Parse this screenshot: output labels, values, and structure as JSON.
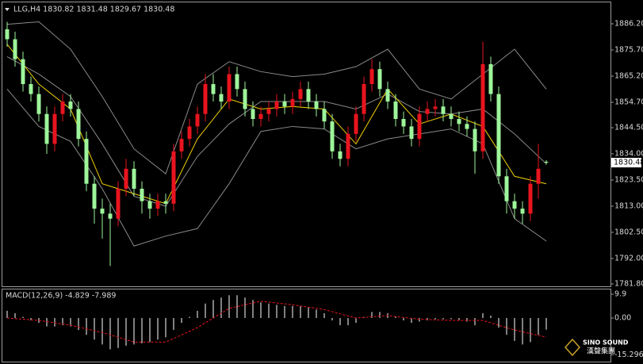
{
  "chart_data": [
    {
      "type": "candlestick",
      "title": "LLG,H4 1830.82 1831.48 1829.67 1830.48",
      "open": [
        1884,
        1880,
        1872,
        1862,
        1858,
        1850,
        1838,
        1850,
        1855,
        1852,
        1840,
        1822,
        1812,
        1810,
        1808,
        1820,
        1828,
        1820,
        1815,
        1812,
        1815,
        1814,
        1835,
        1840,
        1845,
        1850,
        1862,
        1858,
        1855,
        1866,
        1860,
        1852,
        1848,
        1850,
        1852,
        1855,
        1853,
        1856,
        1860,
        1855,
        1852,
        1847,
        1835,
        1832,
        1842,
        1850,
        1862,
        1868,
        1860,
        1855,
        1848,
        1845,
        1840,
        1850,
        1852,
        1853,
        1850,
        1848,
        1846,
        1844,
        1835,
        1870,
        1858,
        1825,
        1815,
        1812,
        1810,
        1822,
        1830.82
      ],
      "high": [
        1887,
        1883,
        1875,
        1865,
        1861,
        1853,
        1853,
        1858,
        1858,
        1855,
        1843,
        1825,
        1816,
        1814,
        1823,
        1832,
        1831,
        1823,
        1818,
        1818,
        1818,
        1838,
        1843,
        1848,
        1853,
        1866,
        1866,
        1861,
        1869,
        1869,
        1863,
        1855,
        1853,
        1855,
        1858,
        1858,
        1859,
        1863,
        1863,
        1858,
        1855,
        1850,
        1838,
        1845,
        1853,
        1865,
        1872,
        1871,
        1863,
        1858,
        1851,
        1848,
        1853,
        1855,
        1856,
        1856,
        1853,
        1851,
        1849,
        1847,
        1879,
        1873,
        1861,
        1828,
        1818,
        1815,
        1825,
        1838,
        1831.48
      ],
      "low": [
        1877,
        1869,
        1859,
        1855,
        1847,
        1834,
        1835,
        1847,
        1849,
        1837,
        1819,
        1806,
        1800,
        1789,
        1805,
        1817,
        1817,
        1810,
        1808,
        1809,
        1810,
        1811,
        1832,
        1837,
        1842,
        1847,
        1855,
        1852,
        1852,
        1857,
        1849,
        1845,
        1845,
        1847,
        1849,
        1850,
        1850,
        1853,
        1852,
        1849,
        1844,
        1832,
        1829,
        1829,
        1839,
        1847,
        1859,
        1857,
        1852,
        1845,
        1842,
        1837,
        1837,
        1847,
        1849,
        1847,
        1845,
        1843,
        1841,
        1826,
        1832,
        1855,
        1822,
        1810,
        1808,
        1806,
        1807,
        1816,
        1829.67
      ],
      "close": [
        1880,
        1872,
        1862,
        1858,
        1850,
        1838,
        1850,
        1855,
        1852,
        1840,
        1822,
        1812,
        1810,
        1808,
        1820,
        1828,
        1820,
        1815,
        1812,
        1815,
        1814,
        1835,
        1840,
        1845,
        1850,
        1862,
        1858,
        1855,
        1866,
        1860,
        1852,
        1848,
        1850,
        1852,
        1855,
        1853,
        1856,
        1860,
        1855,
        1852,
        1847,
        1835,
        1832,
        1842,
        1850,
        1862,
        1868,
        1860,
        1855,
        1848,
        1845,
        1840,
        1850,
        1852,
        1853,
        1850,
        1848,
        1846,
        1844,
        1835,
        1870,
        1858,
        1825,
        1815,
        1812,
        1810,
        1822,
        1828,
        1830.48
      ],
      "up_color": "#e8141e",
      "down_color": "#9ef59a",
      "overlays": [
        {
          "x": [
            0,
            4,
            8,
            12,
            16,
            20,
            24,
            28,
            32,
            36,
            40,
            44,
            48,
            52,
            56,
            60,
            64,
            68
          ],
          "values": [
            1886,
            1887,
            1876,
            1857,
            1836,
            1826,
            1862,
            1871,
            1867,
            1865,
            1866,
            1869,
            1876,
            1860,
            1856,
            1866,
            1876,
            1860
          ],
          "color": "#8a8a8a"
        },
        {
          "x": [
            0,
            4,
            8,
            12,
            16,
            20,
            24,
            28,
            32,
            36,
            40,
            44,
            48,
            52,
            56,
            60,
            64,
            68
          ],
          "values": [
            1873,
            1866,
            1857,
            1838,
            1817,
            1813,
            1833,
            1846,
            1855,
            1855,
            1855,
            1852,
            1858,
            1851,
            1850,
            1852,
            1842,
            1830
          ],
          "color": "#8a8a8a"
        },
        {
          "x": [
            0,
            4,
            8,
            12,
            16,
            20,
            24,
            28,
            32,
            36,
            40,
            44,
            48,
            52,
            56,
            60,
            64,
            68
          ],
          "values": [
            1860,
            1845,
            1839,
            1820,
            1797,
            1801,
            1804,
            1822,
            1843,
            1845,
            1844,
            1836,
            1840,
            1842,
            1844,
            1838,
            1808,
            1799
          ],
          "color": "#8a8a8a"
        },
        {
          "x": [
            0,
            4,
            8,
            12,
            16,
            20,
            24,
            28,
            32,
            36,
            40,
            44,
            48,
            52,
            56,
            60,
            64,
            68
          ],
          "values": [
            1878,
            1862,
            1852,
            1822,
            1818,
            1814,
            1840,
            1856,
            1852,
            1853,
            1852,
            1838,
            1860,
            1846,
            1850,
            1845,
            1825,
            1822
          ],
          "color": "#f0d000"
        }
      ],
      "ylim": [
        1780.85,
        1893.2
      ],
      "yticks": [
        {
          "value": 1886.2,
          "label": "1886.20"
        },
        {
          "value": 1875.7,
          "label": "1875.70"
        },
        {
          "value": 1865.2,
          "label": "1865.20"
        },
        {
          "value": 1854.7,
          "label": "1854.70"
        },
        {
          "value": 1844.5,
          "label": "1844.50"
        },
        {
          "value": 1834,
          "label": "1834.00"
        },
        {
          "value": 1823.5,
          "label": "1823.50"
        },
        {
          "value": 1813,
          "label": "1813.00"
        },
        {
          "value": 1802.5,
          "label": "1802.50"
        },
        {
          "value": 1792,
          "label": "1792.00"
        },
        {
          "value": 1781.8,
          "label": "1781.80"
        }
      ]
    },
    {
      "type": "macd",
      "title": "MACD(12,26,9) -4.829 -7.989",
      "values": [
        3,
        2,
        0.5,
        -1,
        -2,
        -3.5,
        -3.5,
        -3,
        -3.5,
        -5,
        -7,
        -9,
        -11,
        -13,
        -12.5,
        -11.5,
        -11,
        -10.5,
        -10,
        -9,
        -8,
        -5,
        -2,
        0.5,
        3,
        6,
        7.5,
        8.5,
        9.5,
        9.5,
        8.5,
        7.5,
        6.5,
        6,
        5.5,
        5,
        5,
        5,
        4.5,
        3.5,
        2,
        -1,
        -3,
        -3,
        -2,
        0.5,
        2.5,
        2.5,
        2,
        0.5,
        -1,
        -2,
        -1.5,
        -1,
        -0.5,
        -0.5,
        -0.5,
        -1,
        -1.5,
        -3,
        2,
        1,
        -4,
        -7,
        -9.5,
        -11,
        -10,
        -7,
        -4.829
      ],
      "color": "#ffffff",
      "signal": {
        "x": [
          0,
          4,
          8,
          12,
          16,
          20,
          24,
          28,
          32,
          36,
          40,
          44,
          48,
          52,
          56,
          60,
          64,
          68
        ],
        "values": [
          0,
          -1,
          -3,
          -6,
          -10,
          -10,
          -4,
          4,
          7,
          5.5,
          3.5,
          0,
          1,
          -0.5,
          -1,
          -1,
          -5,
          -7.989
        ],
        "color": "#e8141e"
      },
      "ylim": [
        -17.8,
        12.2
      ],
      "yticks": [
        9.9,
        {
          "value": 0,
          "label": "0.00"
        },
        -15.296
      ]
    }
  ],
  "logo": {
    "name": "SINO SOUND",
    "chinese": "漢聲集團"
  }
}
